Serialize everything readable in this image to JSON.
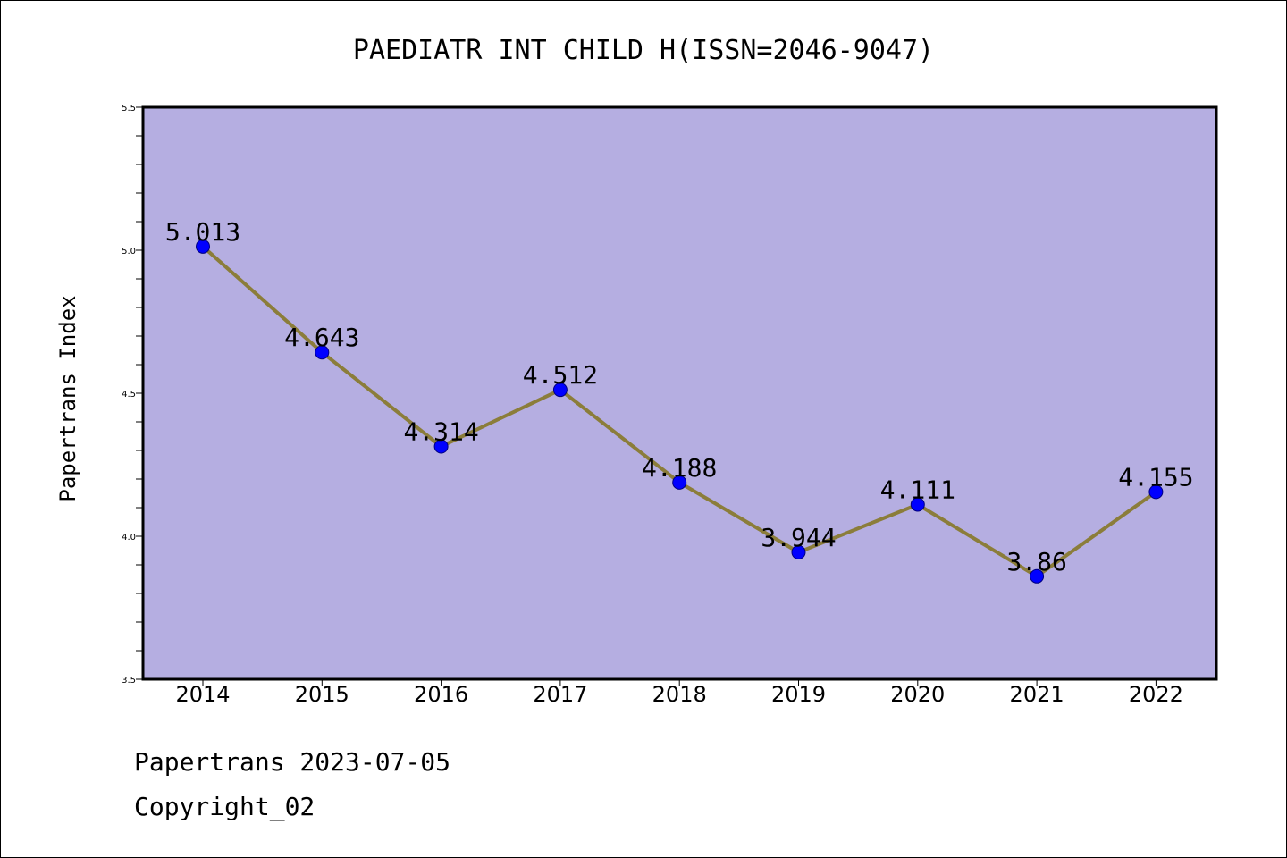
{
  "chart_data": {
    "type": "line",
    "title": "PAEDIATR INT CHILD H(ISSN=2046-9047)",
    "xlabel": "",
    "ylabel": "Papertrans Index",
    "categories": [
      "2014",
      "2015",
      "2016",
      "2017",
      "2018",
      "2019",
      "2020",
      "2021",
      "2022"
    ],
    "series": [
      {
        "values": [
          5.013,
          4.643,
          4.314,
          4.512,
          4.188,
          3.944,
          4.111,
          3.86,
          4.155
        ],
        "labels": [
          "5.013",
          "4.643",
          "4.314",
          "4.512",
          "4.188",
          "3.944",
          "4.111",
          "3.86",
          "4.155"
        ]
      }
    ],
    "ylim": [
      3.5,
      5.5
    ],
    "y_ticks": [
      "3.5",
      "4.0",
      "4.5",
      "5.0",
      "5.5"
    ],
    "y_minor_step": 0.1,
    "grid": false,
    "colors": {
      "plot_background": "#b5aee1",
      "line": "#8b7d3a",
      "marker": "#0000ff",
      "marker_edge": "#000080"
    }
  },
  "footer": {
    "date_line": "Papertrans 2023-07-05",
    "copyright": "Copyright_02"
  }
}
